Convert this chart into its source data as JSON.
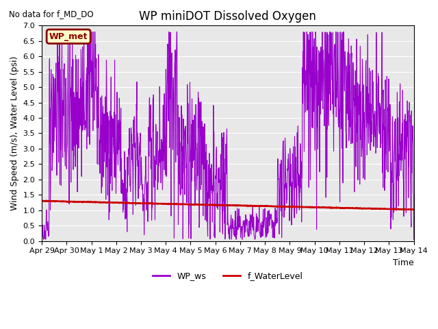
{
  "title": "WP miniDOT Dissolved Oxygen",
  "no_data_text": "No data for f_MD_DO",
  "legend_box_text": "WP_met",
  "ylabel": "Wind Speed (m/s), Water Level (psi)",
  "xlabel": "Time",
  "ylim": [
    0.0,
    7.0
  ],
  "yticks": [
    0.0,
    0.5,
    1.0,
    1.5,
    2.0,
    2.5,
    3.0,
    3.5,
    4.0,
    4.5,
    5.0,
    5.5,
    6.0,
    6.5,
    7.0
  ],
  "bg_color": "#e8e8e8",
  "ws_color": "#9900cc",
  "wl_color": "#cc0000",
  "ws_label": "WP_ws",
  "wl_label": "f_WaterLevel",
  "ws_linewidth": 0.8,
  "wl_linewidth": 1.8,
  "legend_box_color": "#ffffcc",
  "legend_box_edge": "#8b0000",
  "title_fontsize": 12,
  "label_fontsize": 9,
  "tick_fontsize": 8,
  "xticklabels": [
    "Apr 29",
    "Apr 30",
    "May 1",
    "May 2",
    "May 3",
    "May 4",
    "May 5",
    "May 6",
    "May 7",
    "May 8",
    "May 9",
    "May 10",
    "May 11",
    "May 12",
    "May 13",
    "May 14"
  ],
  "xtick_positions": [
    0,
    1,
    2,
    3,
    4,
    5,
    6,
    7,
    8,
    9,
    10,
    11,
    12,
    13,
    14,
    15
  ]
}
